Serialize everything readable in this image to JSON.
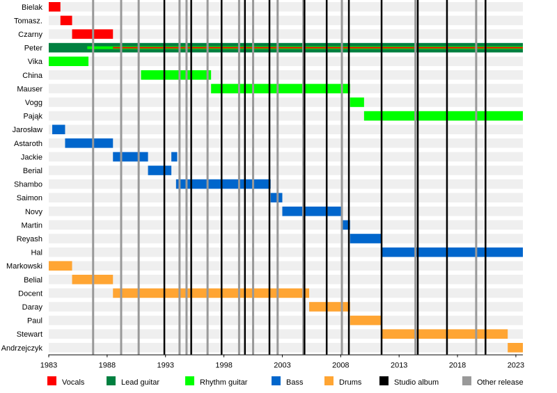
{
  "chart_data": {
    "type": "timeline",
    "x_range": [
      1983,
      2023.6
    ],
    "x_ticks": [
      1983,
      1988,
      1993,
      1998,
      2003,
      2008,
      2013,
      2018,
      2023
    ],
    "members": [
      {
        "name": "Bielak",
        "bars": [
          {
            "role": "vocals",
            "start": 1983,
            "end": 1984
          }
        ]
      },
      {
        "name": "Tomasz.",
        "bars": [
          {
            "role": "vocals",
            "start": 1984,
            "end": 1985
          }
        ]
      },
      {
        "name": "Czarny",
        "bars": [
          {
            "role": "vocals",
            "start": 1985,
            "end": 1988.5
          }
        ]
      },
      {
        "name": "Peter",
        "bars": [
          {
            "role": "lead_guitar",
            "start": 1983,
            "end": 2023.6
          },
          {
            "role": "rhythm_guitar",
            "start": 1986.3,
            "end": 1988.5,
            "thin": true
          },
          {
            "role": "rhythm_guitar",
            "start": 1988.5,
            "end": 2023.6,
            "thin": true
          },
          {
            "role": "vocals",
            "start": 1988.5,
            "end": 2023.6,
            "thin": true
          }
        ]
      },
      {
        "name": "Vika",
        "bars": [
          {
            "role": "rhythm_guitar",
            "start": 1983,
            "end": 1986.4
          }
        ]
      },
      {
        "name": "China",
        "bars": [
          {
            "role": "rhythm_guitar",
            "start": 1990.9,
            "end": 1996.9
          }
        ]
      },
      {
        "name": "Mauser",
        "bars": [
          {
            "role": "rhythm_guitar",
            "start": 1996.9,
            "end": 2008.8
          }
        ]
      },
      {
        "name": "Vogg",
        "bars": [
          {
            "role": "rhythm_guitar",
            "start": 2008.8,
            "end": 2010
          }
        ]
      },
      {
        "name": "Pająk",
        "bars": [
          {
            "role": "rhythm_guitar",
            "start": 2010,
            "end": 2023.6
          }
        ]
      },
      {
        "name": "Jarosław",
        "bars": [
          {
            "role": "bass",
            "start": 1983.3,
            "end": 1984.4
          }
        ]
      },
      {
        "name": "Astaroth",
        "bars": [
          {
            "role": "bass",
            "start": 1984.4,
            "end": 1988.5
          }
        ]
      },
      {
        "name": "Jackie",
        "bars": [
          {
            "role": "bass",
            "start": 1988.5,
            "end": 1991.5
          },
          {
            "role": "bass",
            "start": 1993.5,
            "end": 1994
          }
        ]
      },
      {
        "name": "Berial",
        "bars": [
          {
            "role": "bass",
            "start": 1991.5,
            "end": 1993.5
          }
        ]
      },
      {
        "name": "Shambo",
        "bars": [
          {
            "role": "bass",
            "start": 1993.9,
            "end": 2002
          }
        ]
      },
      {
        "name": "Saimon",
        "bars": [
          {
            "role": "bass",
            "start": 2002,
            "end": 2003
          }
        ]
      },
      {
        "name": "Novy",
        "bars": [
          {
            "role": "bass",
            "start": 2003,
            "end": 2008.1
          }
        ]
      },
      {
        "name": "Martin",
        "bars": [
          {
            "role": "bass",
            "start": 2008.1,
            "end": 2008.8
          }
        ]
      },
      {
        "name": "Reyash",
        "bars": [
          {
            "role": "bass",
            "start": 2008.8,
            "end": 2011.5
          }
        ]
      },
      {
        "name": "Hal",
        "bars": [
          {
            "role": "bass",
            "start": 2011.5,
            "end": 2023.6
          }
        ]
      },
      {
        "name": "Markowski",
        "bars": [
          {
            "role": "drums",
            "start": 1983,
            "end": 1985
          }
        ]
      },
      {
        "name": "Belial",
        "bars": [
          {
            "role": "drums",
            "start": 1985,
            "end": 1988.5
          }
        ]
      },
      {
        "name": "Docent",
        "bars": [
          {
            "role": "drums",
            "start": 1988.5,
            "end": 2005.3
          }
        ]
      },
      {
        "name": "Daray",
        "bars": [
          {
            "role": "drums",
            "start": 2005.3,
            "end": 2008.8
          }
        ]
      },
      {
        "name": "Paul",
        "bars": [
          {
            "role": "drums",
            "start": 2008.8,
            "end": 2011.5
          }
        ]
      },
      {
        "name": "Stewart",
        "bars": [
          {
            "role": "drums",
            "start": 2011.5,
            "end": 2022.3
          }
        ]
      },
      {
        "name": "Andrzejczyk",
        "bars": [
          {
            "role": "drums",
            "start": 2022.3,
            "end": 2023.6
          }
        ]
      }
    ],
    "studio_albums": [
      1992.9,
      1995.2,
      1997.8,
      1999.8,
      2001.9,
      2004.9,
      2006.8,
      2008.7,
      2011.5,
      2014.6,
      2017.1,
      2020.4
    ],
    "other_releases": [
      1986.8,
      1989.2,
      1990.7,
      1994.2,
      1994.8,
      1996.6,
      1999.3,
      2000.5,
      2002.6,
      2004.8,
      2008.1,
      2014.4,
      2019.6
    ],
    "legend": [
      {
        "role": "vocals",
        "label": "Vocals"
      },
      {
        "role": "lead_guitar",
        "label": "Lead guitar"
      },
      {
        "role": "rhythm_guitar",
        "label": "Rhythm guitar"
      },
      {
        "role": "bass",
        "label": "Bass"
      },
      {
        "role": "drums",
        "label": "Drums"
      },
      {
        "role": "studio_album",
        "label": "Studio album"
      },
      {
        "role": "other_release",
        "label": "Other release"
      }
    ],
    "colors": {
      "vocals": "#ff0000",
      "lead_guitar": "#008040",
      "rhythm_guitar": "#00ff00",
      "bass": "#0066cc",
      "drums": "#ffa533",
      "studio_album": "#000000",
      "other_release": "#999999",
      "row_stripe": "#efefef"
    }
  }
}
